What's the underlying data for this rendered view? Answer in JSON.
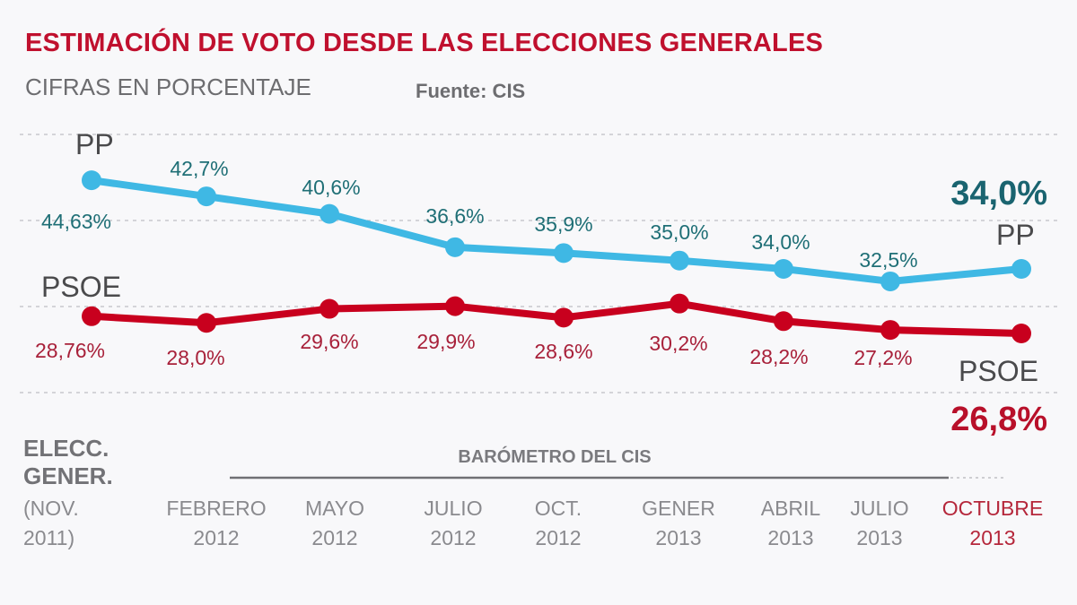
{
  "header": {
    "title": "ESTIMACIÓN DE VOTO DESDE LAS ELECCIONES GENERALES",
    "subtitle": "CIFRAS EN PORCENTAJE",
    "source": "Fuente: CIS"
  },
  "colors": {
    "pp_line": "#3fb8e4",
    "psoe_line": "#c8001e",
    "title": "#c0102e",
    "pp_text": "#1f6f76",
    "psoe_text": "#a8213a",
    "gridline": "#c8c8cc"
  },
  "chart_data": {
    "type": "line",
    "title": "ESTIMACIÓN DE VOTO DESDE LAS ELECCIONES GENERALES",
    "subtitle": "CIFRAS EN PORCENTAJE",
    "source": "Fuente: CIS",
    "xlabel": "",
    "ylabel": "%",
    "grid": true,
    "ylim": [
      22,
      50
    ],
    "categories": [
      {
        "line1": "(NOV.",
        "line2": "2011)"
      },
      {
        "line1": "FEBRERO",
        "line2": "2012"
      },
      {
        "line1": "MAYO",
        "line2": "2012"
      },
      {
        "line1": "JULIO",
        "line2": "2012"
      },
      {
        "line1": "OCT.",
        "line2": "2012"
      },
      {
        "line1": "GENER",
        "line2": "2013"
      },
      {
        "line1": "ABRIL",
        "line2": "2013"
      },
      {
        "line1": "JULIO",
        "line2": "2013"
      },
      {
        "line1": "OCTUBRE",
        "line2": "2013"
      }
    ],
    "first_category_header": [
      "ELECC.",
      "GENER."
    ],
    "group_label": "BARÓMETRO DEL CIS",
    "series": [
      {
        "name": "PP",
        "values": [
          44.63,
          42.7,
          40.6,
          36.6,
          35.9,
          35.0,
          34.0,
          32.5,
          34.0
        ],
        "labels": [
          "44,63%",
          "42,7%",
          "40,6%",
          "36,6%",
          "35,9%",
          "35,0%",
          "34,0%",
          "32,5%",
          ""
        ],
        "final_label": "34,0%"
      },
      {
        "name": "PSOE",
        "values": [
          28.76,
          28.0,
          29.6,
          29.9,
          28.6,
          30.2,
          28.2,
          27.2,
          26.8
        ],
        "labels": [
          "28,76%",
          "28,0%",
          "29,6%",
          "29,9%",
          "28,6%",
          "30,2%",
          "28,2%",
          "27,2%",
          ""
        ],
        "final_label": "26,8%"
      }
    ]
  }
}
